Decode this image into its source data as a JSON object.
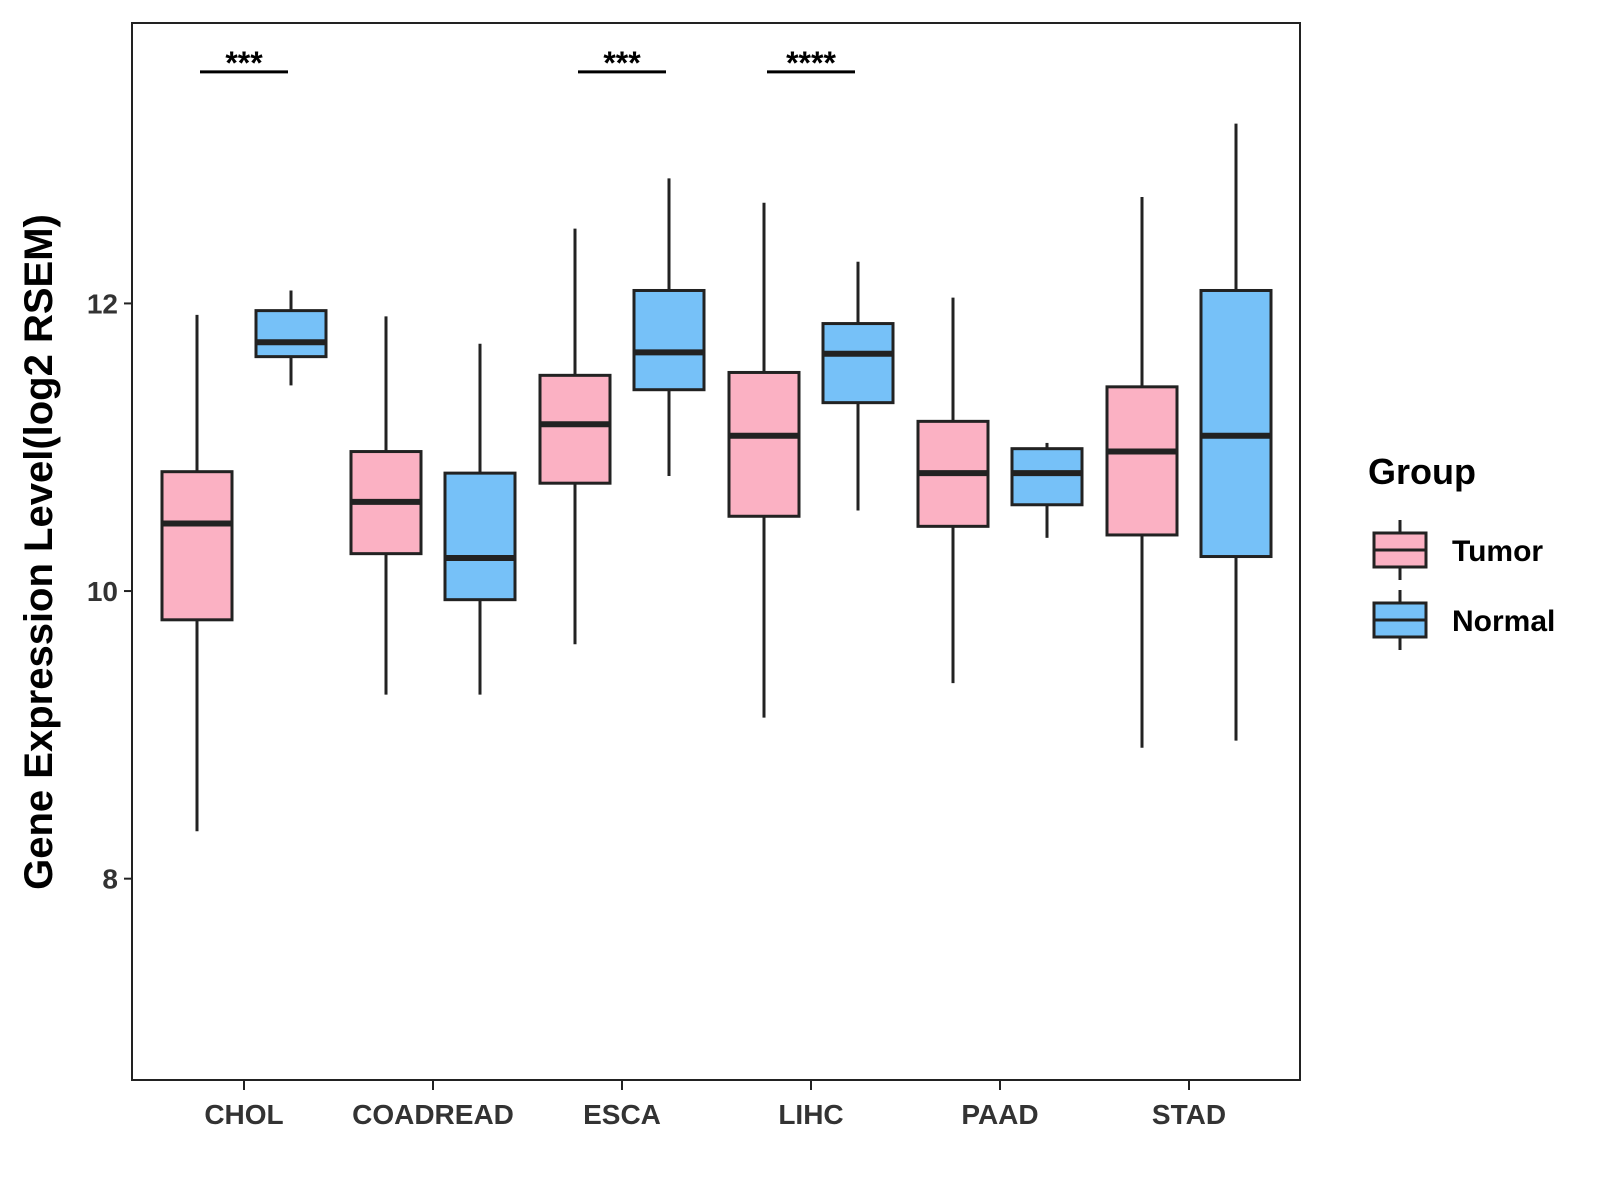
{
  "chart_data": {
    "type": "boxplot",
    "title": "",
    "xlabel": "",
    "ylabel": "Gene Expression Level(log2 RSEM)",
    "ylim": [
      6.6,
      13.95
    ],
    "yticks": [
      8,
      10,
      12
    ],
    "categories": [
      "CHOL",
      "COADREAD",
      "ESCA",
      "LIHC",
      "PAAD",
      "STAD"
    ],
    "legend": {
      "title": "Group",
      "position": "right",
      "entries": [
        "Tumor",
        "Normal"
      ]
    },
    "colors": {
      "Tumor": "#FBB1C3",
      "Normal": "#76C1F8",
      "outline": "#222222"
    },
    "series": [
      {
        "name": "Tumor",
        "boxes": [
          {
            "category": "CHOL",
            "min": 8.33,
            "q1": 9.8,
            "median": 10.47,
            "q3": 10.83,
            "max": 11.92
          },
          {
            "category": "COADREAD",
            "min": 9.28,
            "q1": 10.26,
            "median": 10.62,
            "q3": 10.97,
            "max": 11.91
          },
          {
            "category": "ESCA",
            "min": 9.63,
            "q1": 10.75,
            "median": 11.16,
            "q3": 11.5,
            "max": 12.52
          },
          {
            "category": "LIHC",
            "min": 9.12,
            "q1": 10.52,
            "median": 11.08,
            "q3": 11.52,
            "max": 12.7
          },
          {
            "category": "PAAD",
            "min": 9.36,
            "q1": 10.45,
            "median": 10.82,
            "q3": 11.18,
            "max": 12.04
          },
          {
            "category": "STAD",
            "min": 8.91,
            "q1": 10.39,
            "median": 10.97,
            "q3": 11.42,
            "max": 12.74
          }
        ]
      },
      {
        "name": "Normal",
        "boxes": [
          {
            "category": "CHOL",
            "min": 11.43,
            "q1": 11.63,
            "median": 11.73,
            "q3": 11.95,
            "max": 12.09
          },
          {
            "category": "COADREAD",
            "min": 9.28,
            "q1": 9.94,
            "median": 10.23,
            "q3": 10.82,
            "max": 11.72
          },
          {
            "category": "ESCA",
            "min": 10.8,
            "q1": 11.4,
            "median": 11.66,
            "q3": 12.09,
            "max": 12.87
          },
          {
            "category": "LIHC",
            "min": 10.56,
            "q1": 11.31,
            "median": 11.65,
            "q3": 11.86,
            "max": 12.29
          },
          {
            "category": "PAAD",
            "min": 10.37,
            "q1": 10.6,
            "median": 10.82,
            "q3": 10.99,
            "max": 11.03
          },
          {
            "category": "STAD",
            "min": 8.96,
            "q1": 10.24,
            "median": 11.08,
            "q3": 12.09,
            "max": 13.25
          }
        ]
      }
    ],
    "annotations": [
      {
        "category": "CHOL",
        "label": "***",
        "y": 13.61
      },
      {
        "category": "ESCA",
        "label": "***",
        "y": 13.61
      },
      {
        "category": "LIHC",
        "label": "****",
        "y": 13.61
      }
    ]
  }
}
